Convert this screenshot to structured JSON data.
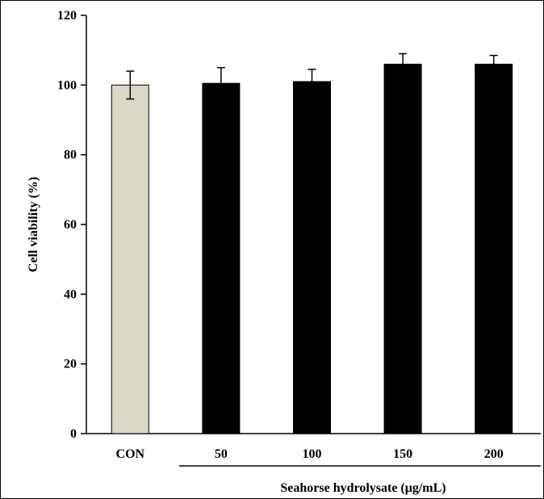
{
  "chart_data": {
    "type": "bar",
    "categories": [
      "CON",
      "50",
      "100",
      "150",
      "200"
    ],
    "series": [
      {
        "values": [
          100,
          100.5,
          101,
          106,
          106
        ],
        "errors": [
          4,
          4.5,
          3.5,
          3,
          2.5
        ]
      }
    ],
    "bar_colors": [
      "#dcd8c8",
      "#000000",
      "#000000",
      "#000000",
      "#000000"
    ],
    "ylabel": "Cell viability (%)",
    "xlabel": "Seahorse hydrolysate (μg/mL)",
    "ylim": [
      0,
      120
    ],
    "yticks": [
      0,
      20,
      40,
      60,
      80,
      100,
      120
    ],
    "grid": false,
    "legend": "none"
  }
}
